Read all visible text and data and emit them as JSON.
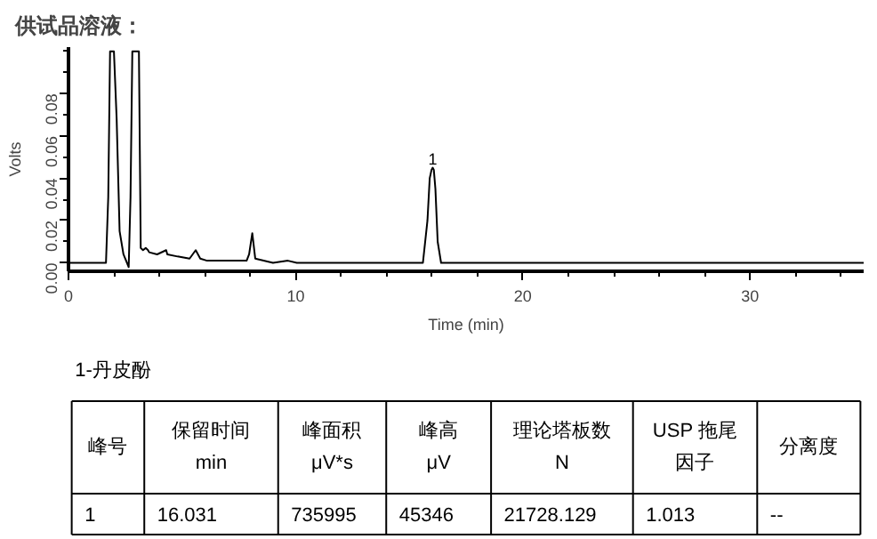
{
  "chart_data": [
    {
      "type": "line",
      "title": "供试品溶液：",
      "xlabel": "Time (min)",
      "ylabel": "Volts",
      "x": [
        0,
        1.65,
        1.75,
        1.83,
        2.0,
        2.12,
        2.25,
        2.42,
        2.65,
        2.73,
        2.81,
        3.1,
        3.18,
        3.28,
        3.4,
        3.5,
        3.55,
        3.9,
        4.3,
        4.35,
        4.8,
        5.33,
        5.6,
        5.8,
        6.1,
        7.84,
        7.95,
        8.09,
        8.22,
        9.0,
        9.66,
        10.05,
        15.6,
        15.8,
        15.9,
        15.98,
        16.03,
        16.08,
        16.15,
        16.25,
        16.4,
        35
      ],
      "series": [
        {
          "color": "#000000",
          "values": [
            0,
            0,
            0.031,
            0.1,
            0.1,
            0.068,
            0.015,
            0.004,
            -0.002,
            0.031,
            0.1,
            0.1,
            0.007,
            0.006,
            0.007,
            0.006,
            0.005,
            0.004,
            0.006,
            0.004,
            0.003,
            0.002,
            0.006,
            0.002,
            0.001,
            0.001,
            0.004,
            0.014,
            0.002,
            0,
            0.001,
            0,
            0,
            0.02,
            0.04,
            0.044,
            0.045,
            0.044,
            0.035,
            0.01,
            0,
            0
          ]
        }
      ],
      "xlim": [
        0,
        35
      ],
      "ylim": [
        -0.004,
        0.102
      ],
      "xticks": [
        0,
        10,
        20,
        30
      ],
      "yticks": [
        {
          "value": 0,
          "label": "0.00"
        },
        {
          "value": 0.02,
          "label": "0.02"
        },
        {
          "value": 0.04,
          "label": "0.04"
        },
        {
          "value": 0.06,
          "label": "0.06"
        },
        {
          "value": 0.08,
          "label": "0.08"
        }
      ],
      "annotations": [
        {
          "text": "1",
          "x": 16.03,
          "y": 0.045
        }
      ],
      "grid": false
    },
    {
      "type": "other",
      "title": "1-丹皮酚",
      "annotations": [
        "峰号",
        "保留时间\nmin",
        "峰面积\nμV*s",
        "峰高\nμV",
        "理论塔板数\nN",
        "USP 拖尾因子",
        "分离度",
        "1",
        "16.031",
        "735995",
        "45346",
        "21728.129",
        "1.013",
        "--"
      ]
    }
  ]
}
